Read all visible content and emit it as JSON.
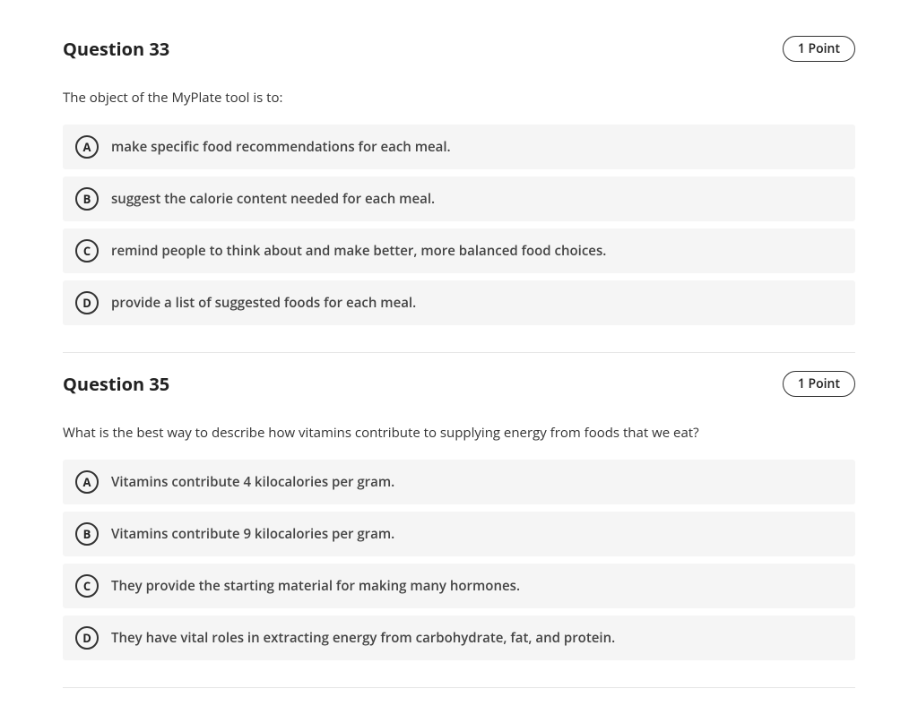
{
  "questions": [
    {
      "title": "Question 33",
      "points": "1 Point",
      "prompt": "The object of the MyPlate tool is to:",
      "choices": [
        {
          "letter": "A",
          "text": "make specific food recommendations for each meal."
        },
        {
          "letter": "B",
          "text": "suggest the calorie content needed for each meal."
        },
        {
          "letter": "C",
          "text": "remind people to think about and make better, more balanced food choices."
        },
        {
          "letter": "D",
          "text": "provide a list of suggested foods for each meal."
        }
      ]
    },
    {
      "title": "Question 35",
      "points": "1 Point",
      "prompt": "What is the best way to describe how vitamins contribute to supplying energy from foods that we eat?",
      "choices": [
        {
          "letter": "A",
          "text": "Vitamins contribute 4 kilocalories per gram."
        },
        {
          "letter": "B",
          "text": "Vitamins contribute 9 kilocalories per gram."
        },
        {
          "letter": "C",
          "text": "They provide the starting material for making many hormones."
        },
        {
          "letter": "D",
          "text": "They have vital roles in extracting energy from carbohydrate, fat, and protein."
        }
      ]
    }
  ],
  "colors": {
    "choice_background": "#f5f5f5",
    "border": "#e5e5e5",
    "text": "#333333",
    "page_background": "#ffffff"
  },
  "typography": {
    "title_fontsize": 20,
    "prompt_fontsize": 15,
    "choice_fontsize": 15,
    "badge_fontsize": 14
  }
}
